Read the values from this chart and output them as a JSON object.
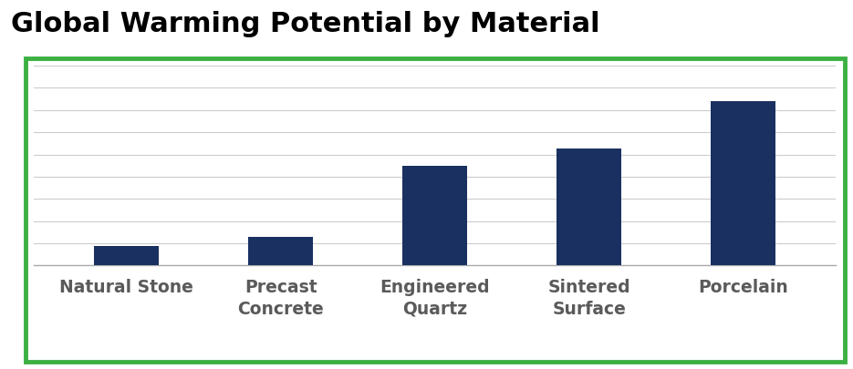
{
  "title": "Global Warming Potential by Material",
  "categories": [
    "Natural Stone",
    "Precast\nConcrete",
    "Engineered\nQuartz",
    "Sintered\nSurface",
    "Porcelain"
  ],
  "values": [
    75,
    110,
    390,
    455,
    640
  ],
  "bar_color": "#1a3060",
  "background_color": "#ffffff",
  "plot_bg_color": "#ffffff",
  "border_color": "#3cb043",
  "border_width": 3.5,
  "title_fontsize": 22,
  "title_fontweight": "bold",
  "tick_label_fontsize": 13.5,
  "tick_label_color": "#5a5a5a",
  "grid_color": "#cccccc",
  "grid_linewidth": 0.8,
  "ylim": [
    0,
    780
  ],
  "bar_width": 0.42,
  "num_gridlines": 10
}
